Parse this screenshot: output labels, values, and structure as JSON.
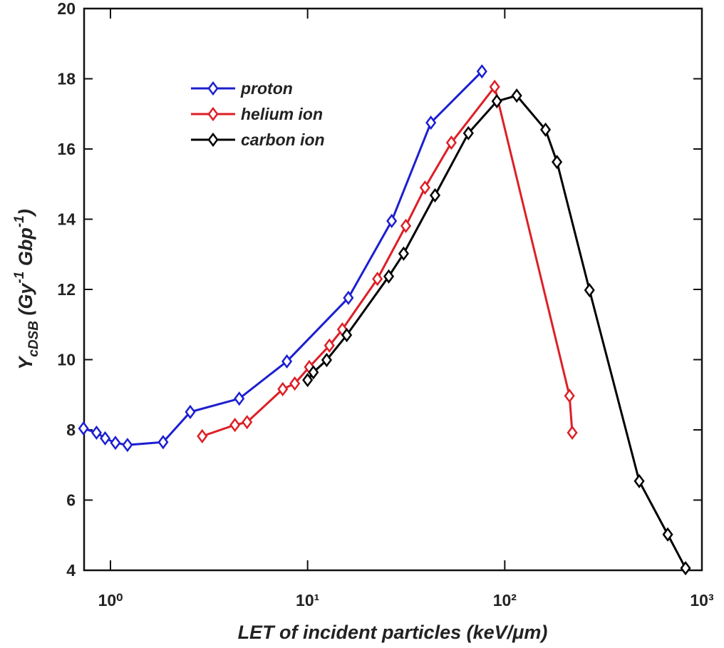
{
  "chart_data": {
    "type": "line",
    "xlabel": "LET of incident particles (keV/μm)",
    "ylabel": [
      {
        "text": "Y"
      },
      {
        "text": "cDSB",
        "shift": "sub"
      },
      {
        "text": " (Gy"
      },
      {
        "text": "-1",
        "shift": "super"
      },
      {
        "text": " Gbp"
      },
      {
        "text": "-1",
        "shift": "super"
      },
      {
        "text": ")"
      }
    ],
    "xscale": "log",
    "xlim": [
      0.735,
      1000
    ],
    "xticks": [
      {
        "value": 1,
        "label": "10⁰"
      },
      {
        "value": 10,
        "label": "10¹"
      },
      {
        "value": 100,
        "label": "10²"
      },
      {
        "value": 1000,
        "label": "10³"
      }
    ],
    "ylim": [
      4,
      20
    ],
    "yticks": [
      4,
      6,
      8,
      10,
      12,
      14,
      16,
      18,
      20
    ],
    "legend": "upper left",
    "series": [
      {
        "name": "proton",
        "color": "#1c1fd0",
        "x": [
          0.73,
          0.85,
          0.94,
          1.06,
          1.22,
          1.85,
          2.54,
          4.5,
          7.85,
          16.1,
          26.7,
          42.2,
          76.6
        ],
        "values": [
          8.04,
          7.92,
          7.76,
          7.63,
          7.57,
          7.65,
          8.51,
          8.89,
          9.95,
          11.76,
          13.95,
          16.75,
          18.21
        ]
      },
      {
        "name": "helium ion",
        "color": "#dd1f26",
        "x": [
          2.92,
          4.28,
          4.93,
          7.48,
          8.61,
          10.2,
          12.9,
          15.0,
          22.6,
          31.5,
          39.4,
          53.6,
          88.9,
          213,
          220
        ],
        "values": [
          7.82,
          8.14,
          8.22,
          9.16,
          9.32,
          9.79,
          10.4,
          10.86,
          12.3,
          13.81,
          14.9,
          16.18,
          17.77,
          8.97,
          7.92
        ]
      },
      {
        "name": "carbon ion",
        "color": "#000000",
        "x": [
          10,
          10.7,
          12.5,
          15.8,
          25.8,
          30.7,
          44.3,
          65.4,
          91.2,
          115,
          161,
          184,
          269,
          481,
          671,
          826
        ],
        "values": [
          9.42,
          9.64,
          9.99,
          10.7,
          12.37,
          13.02,
          14.68,
          16.45,
          17.36,
          17.52,
          16.55,
          15.63,
          11.98,
          6.54,
          5.02,
          4.06
        ]
      }
    ]
  }
}
